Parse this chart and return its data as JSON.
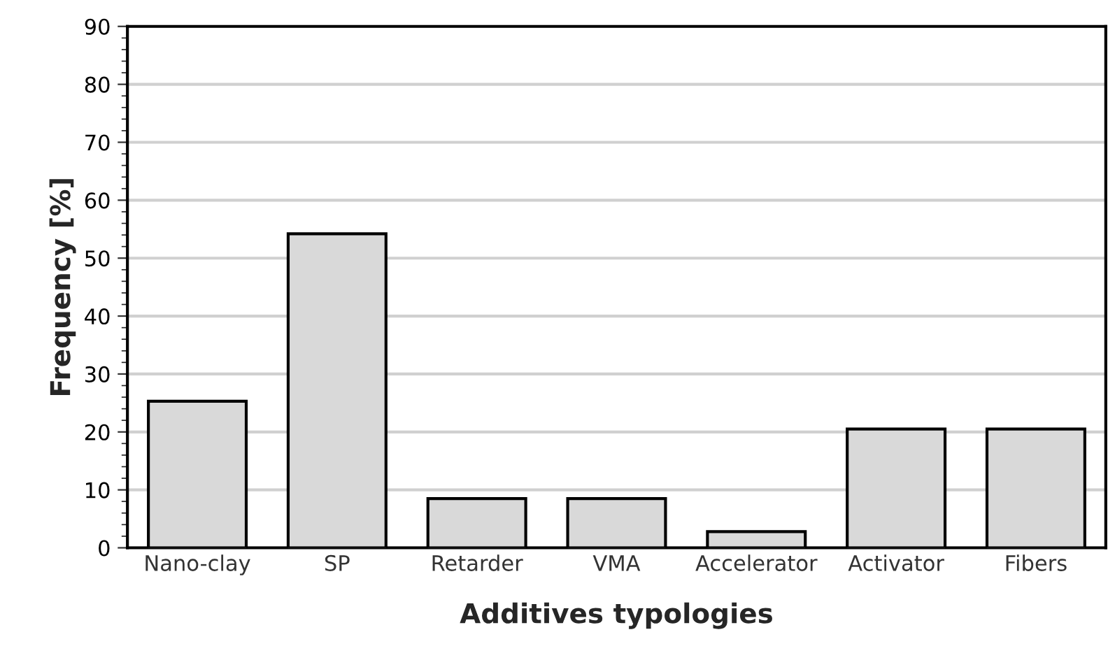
{
  "chart_data": {
    "type": "bar",
    "xlabel": "Additives typologies",
    "ylabel": "Frequency [%]",
    "categories": [
      "Nano-clay",
      "SP",
      "Retarder",
      "VMA",
      "Accelerator",
      "Activator",
      "Fibers"
    ],
    "values": [
      25.3,
      54.2,
      8.5,
      8.5,
      2.8,
      20.5,
      20.5
    ],
    "color": "#d9d9d9",
    "ylim": [
      0,
      90
    ],
    "yticks": [
      0,
      10,
      20,
      30,
      40,
      50,
      60,
      70,
      80,
      90
    ],
    "grid": "y"
  }
}
